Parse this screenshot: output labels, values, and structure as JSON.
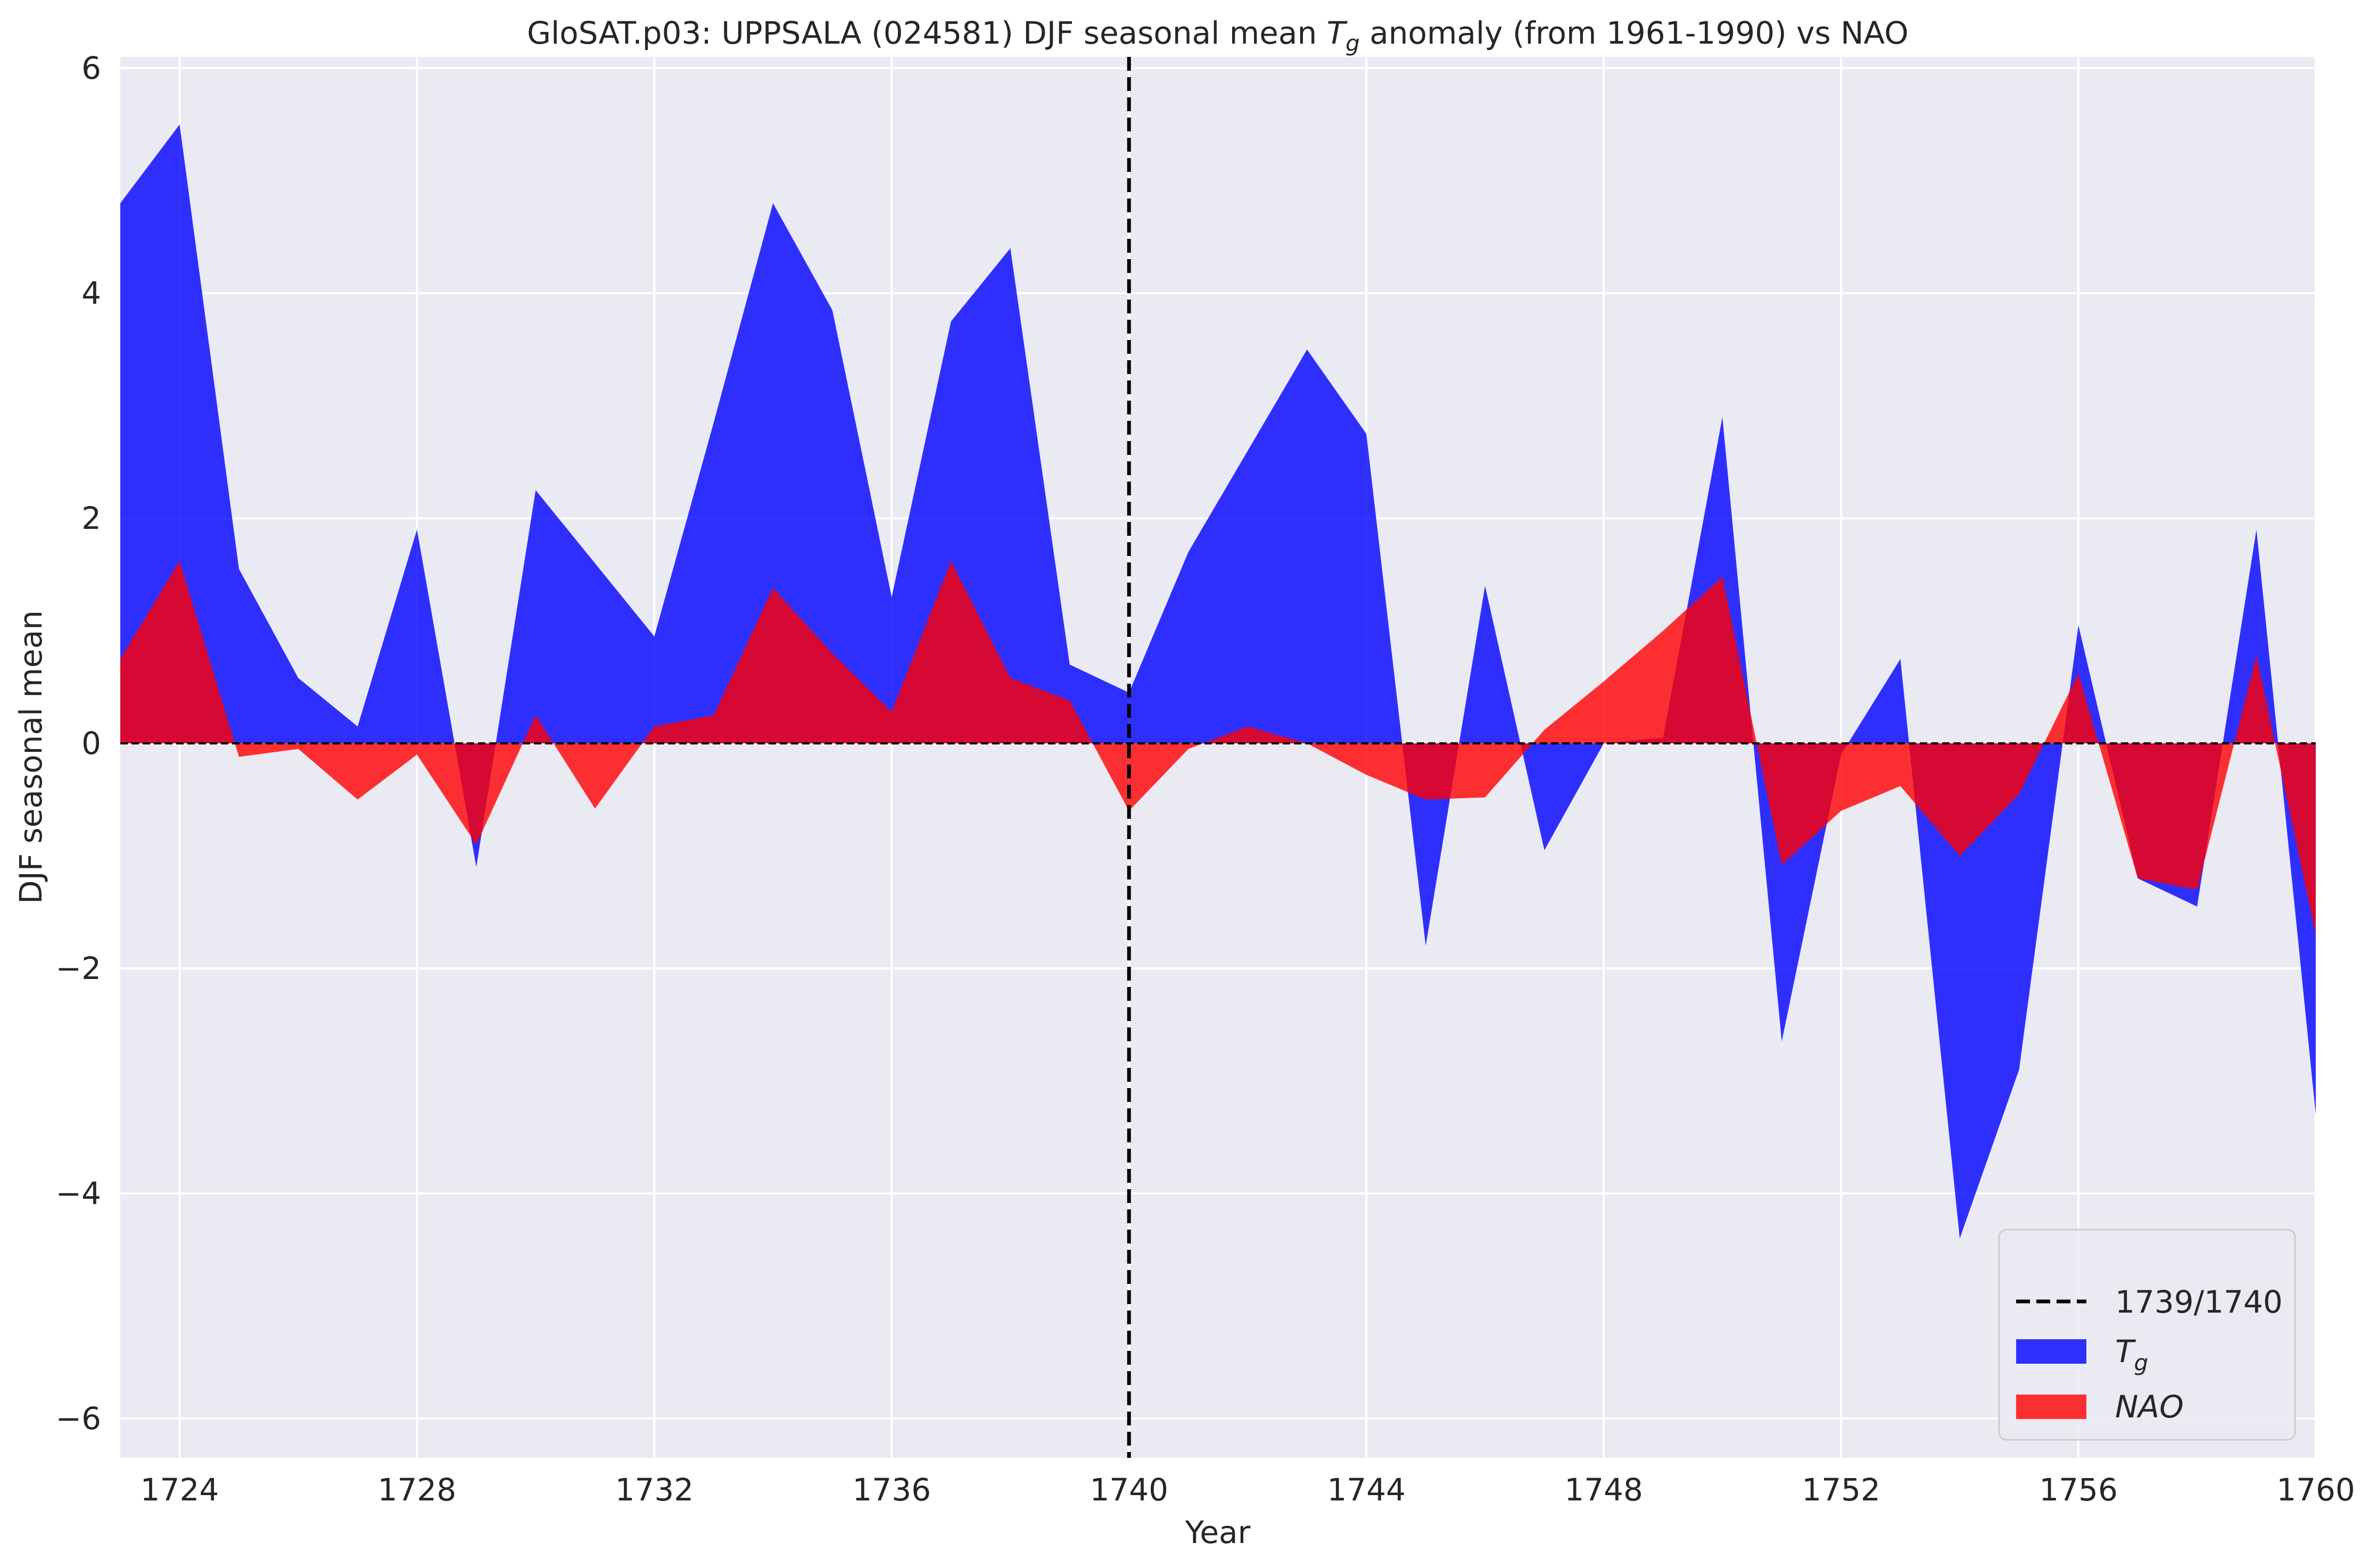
{
  "chart_data": {
    "type": "area",
    "title": "GloSAT.p03: UPPSALA (024581) DJF seasonal mean",
    "title_tg": "T",
    "title_tg_sub": "g",
    "title_rest": "anomaly (from 1961-1990) vs NAO",
    "xlabel": "Year",
    "ylabel": "DJF seasonal mean",
    "xlim": [
      1723,
      1760
    ],
    "ylim": [
      -6.35,
      6.1
    ],
    "xticks": [
      1724,
      1728,
      1732,
      1736,
      1740,
      1744,
      1748,
      1752,
      1756,
      1760
    ],
    "yticks": [
      -6,
      -4,
      -2,
      0,
      2,
      4,
      6
    ],
    "ytick_labels": [
      "−6",
      "−4",
      "−2",
      "0",
      "2",
      "4",
      "6"
    ],
    "grid": true,
    "background": "#eaeaf2",
    "legend_position": "lower right",
    "vline": {
      "x": 1740,
      "label": "1739/1740",
      "color": "#000000",
      "style": "dashed"
    },
    "hline": {
      "y": 0,
      "color": "#000000",
      "style": "dashed"
    },
    "x": [
      1723,
      1724,
      1725,
      1726,
      1727,
      1728,
      1729,
      1730,
      1731,
      1732,
      1733,
      1734,
      1735,
      1736,
      1737,
      1738,
      1739,
      1740,
      1741,
      1742,
      1743,
      1744,
      1745,
      1746,
      1747,
      1748,
      1749,
      1750,
      1751,
      1752,
      1753,
      1754,
      1755,
      1756,
      1757,
      1758,
      1759,
      1760
    ],
    "series": [
      {
        "name": "T",
        "name_sub": "g",
        "color": "#0000ff",
        "values": [
          4.8,
          5.5,
          1.55,
          0.58,
          0.15,
          1.9,
          -1.1,
          2.25,
          1.6,
          0.95,
          2.85,
          4.8,
          3.85,
          1.3,
          3.75,
          4.4,
          0.7,
          0.45,
          1.7,
          2.6,
          3.5,
          2.75,
          -1.8,
          1.4,
          -0.95,
          0.0,
          0.05,
          2.9,
          -2.65,
          -0.1,
          0.75,
          -4.4,
          -2.9,
          1.05,
          -1.2,
          -1.45,
          1.9,
          -3.3
        ]
      },
      {
        "name": "NAO",
        "color": "#ff0000",
        "values": [
          0.75,
          1.62,
          -0.12,
          -0.05,
          -0.5,
          -0.1,
          -0.9,
          0.25,
          -0.58,
          0.15,
          0.25,
          1.38,
          0.8,
          0.28,
          1.62,
          0.58,
          0.38,
          -0.6,
          -0.05,
          0.15,
          0.0,
          -0.28,
          -0.5,
          -0.48,
          0.12,
          0.55,
          1.0,
          1.48,
          -1.08,
          -0.6,
          -0.38,
          -1.0,
          -0.45,
          0.62,
          -1.2,
          -1.3,
          0.78,
          -1.7
        ]
      }
    ],
    "legend": [
      {
        "label": "1739/1740",
        "kind": "dashed-line"
      },
      {
        "label": "T",
        "sub": "g",
        "kind": "patch",
        "color": "#0000ff"
      },
      {
        "label": "NAO",
        "kind": "patch",
        "color": "#ff0000"
      }
    ]
  }
}
